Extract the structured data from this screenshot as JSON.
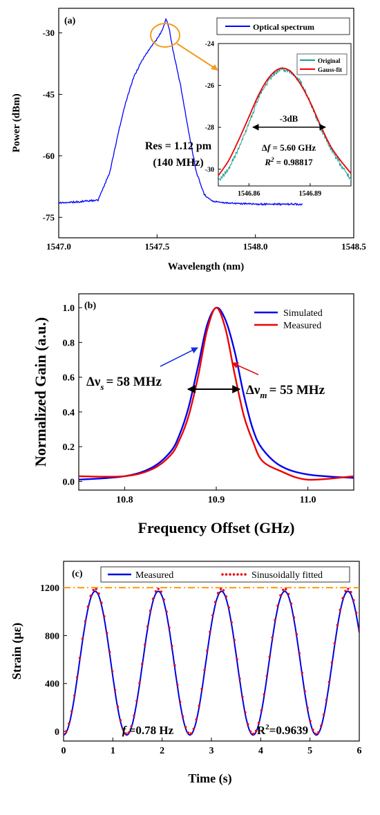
{
  "chart_data": [
    {
      "type": "line",
      "panel_label": "(a)",
      "xlabel": "Wavelength (nm)",
      "ylabel": "Power (dBm)",
      "xlim": [
        1547.0,
        1548.5
      ],
      "ylim": [
        -80,
        -24
      ],
      "xticks": [
        "1547.0",
        "1547.5",
        "1548.0",
        "1548.5"
      ],
      "yticks": [
        "-30",
        "-45",
        "-60",
        "-75"
      ],
      "legend": [
        "Optical spectrum"
      ],
      "legend_position": "top-right",
      "series": [
        {
          "name": "Optical spectrum",
          "color": "#0000ff",
          "x": [
            1547.0,
            1547.1,
            1547.2,
            1547.26,
            1547.3,
            1547.34,
            1547.38,
            1547.42,
            1547.46,
            1547.5,
            1547.53,
            1547.545,
            1547.56,
            1547.58,
            1547.62,
            1547.66,
            1547.7,
            1547.74,
            1547.78,
            1547.85,
            1548.0,
            1548.2,
            1548.24
          ],
          "y": [
            -71.5,
            -71.2,
            -70.8,
            -64,
            -55,
            -47,
            -41,
            -37,
            -34,
            -31.5,
            -29,
            -26.5,
            -28.5,
            -34,
            -43,
            -54,
            -64,
            -69.5,
            -71,
            -71.5,
            -71.8,
            -71.8,
            -71.8
          ]
        }
      ],
      "annotations": [
        "Res = 1.12 pm",
        "(140 MHz)"
      ],
      "inset": {
        "xlim": [
          1546.845,
          1546.91
        ],
        "ylim": [
          -30.8,
          -24
        ],
        "xticks": [
          "1546.86",
          "1546.89"
        ],
        "yticks": [
          "-24",
          "-26",
          "-28",
          "-30"
        ],
        "legend": [
          "Original",
          "Gauss-fit"
        ],
        "series": [
          {
            "name": "Original",
            "color": "#1a9e96",
            "x": [
              1546.845,
              1546.85,
              1546.855,
              1546.86,
              1546.865,
              1546.87,
              1546.875,
              1546.88,
              1546.885,
              1546.89,
              1546.895,
              1546.9,
              1546.905,
              1546.91
            ],
            "y": [
              -30.6,
              -30.0,
              -29.0,
              -27.8,
              -26.5,
              -25.7,
              -25.2,
              -25.3,
              -25.8,
              -26.8,
              -28.0,
              -29.0,
              -29.8,
              -30.5
            ]
          },
          {
            "name": "Gauss-fit",
            "color": "#ee0000",
            "x": [
              1546.845,
              1546.85,
              1546.855,
              1546.86,
              1546.865,
              1546.87,
              1546.875,
              1546.88,
              1546.885,
              1546.89,
              1546.895,
              1546.9,
              1546.905,
              1546.91
            ],
            "y": [
              -30.3,
              -29.6,
              -28.6,
              -27.5,
              -26.4,
              -25.6,
              -25.2,
              -25.3,
              -25.9,
              -26.8,
              -27.9,
              -28.9,
              -29.6,
              -30.2
            ]
          }
        ],
        "annotations": [
          "-3dB",
          "Δf = 5.60 GHz",
          "R2 = 0.98817"
        ],
        "annotation_parts": {
          "delta": "Δ",
          "f": "f",
          "f_value": " = 5.60 GHz",
          "r": "R",
          "r_sup": "2",
          "r_value": " = 0.98817"
        }
      }
    },
    {
      "type": "line",
      "panel_label": "(b)",
      "xlabel": "Frequency Offset (GHz)",
      "ylabel": "Normalized Gain (a.u.)",
      "xlim": [
        10.75,
        11.05
      ],
      "ylim": [
        -0.05,
        1.08
      ],
      "xticks": [
        "10.8",
        "10.9",
        "11.0"
      ],
      "yticks": [
        "0.0",
        "0.2",
        "0.4",
        "0.6",
        "0.8",
        "1.0"
      ],
      "legend": [
        "Simulated",
        "Measured"
      ],
      "legend_position": "top-right",
      "series": [
        {
          "name": "Simulated",
          "color": "#0000ee",
          "x": [
            10.75,
            10.8,
            10.83,
            10.85,
            10.86,
            10.87,
            10.88,
            10.89,
            10.9,
            10.91,
            10.92,
            10.93,
            10.94,
            10.95,
            10.97,
            11.0,
            11.05
          ],
          "y": [
            0.01,
            0.03,
            0.08,
            0.17,
            0.27,
            0.43,
            0.66,
            0.9,
            1.0,
            0.93,
            0.75,
            0.5,
            0.3,
            0.19,
            0.09,
            0.04,
            0.02
          ]
        },
        {
          "name": "Measured",
          "color": "#ee0000",
          "x": [
            10.75,
            10.8,
            10.83,
            10.85,
            10.86,
            10.87,
            10.88,
            10.89,
            10.9,
            10.91,
            10.92,
            10.93,
            10.94,
            10.95,
            10.97,
            11.0,
            11.05
          ],
          "y": [
            0.03,
            0.03,
            0.07,
            0.15,
            0.24,
            0.38,
            0.6,
            0.87,
            1.0,
            0.88,
            0.62,
            0.38,
            0.23,
            0.12,
            0.06,
            0.01,
            0.03
          ]
        }
      ],
      "annotations": [
        "Δν",
        "s",
        "= 58 MHz",
        "Δν",
        "m",
        "= 55 MHz"
      ]
    },
    {
      "type": "line",
      "panel_label": "(c)",
      "xlabel": "Time (s)",
      "ylabel": "Strain (με)",
      "xlim": [
        0,
        6
      ],
      "ylim": [
        -80,
        1420
      ],
      "xticks": [
        "0",
        "1",
        "2",
        "3",
        "4",
        "5",
        "6"
      ],
      "yticks": [
        "0",
        "400",
        "800",
        "1200"
      ],
      "legend": [
        "Measured",
        "Sinusoidally fitted"
      ],
      "legend_position": "top",
      "reference_line_y": 1200,
      "colors": {
        "measured": "#0000dd",
        "fitted": "#ee0000",
        "reference": "#ff9900"
      },
      "series": [
        {
          "name": "Measured",
          "frequency_hz": 0.78,
          "min": -30,
          "max": 1170
        },
        {
          "name": "Sinusoidally fitted",
          "frequency_hz": 0.78,
          "min": -20,
          "max": 1190
        }
      ],
      "annotations": [
        "f =0.78 Hz",
        "R2=0.9639"
      ],
      "annotation_parts": {
        "f": "f",
        "f_value": " =0.78 Hz",
        "r": "R",
        "r_sup": "2",
        "r_value": "=0.9639"
      }
    }
  ]
}
